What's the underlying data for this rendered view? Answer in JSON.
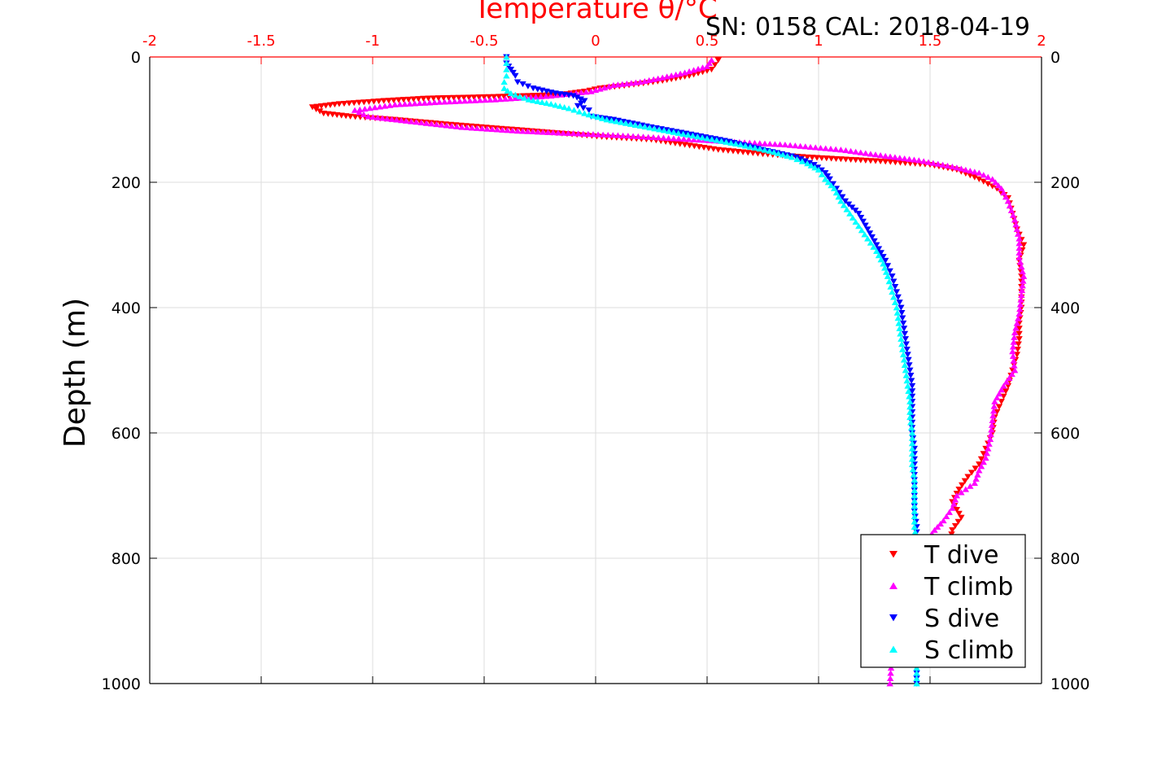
{
  "chart_data": {
    "type": "scatter",
    "title": "Temperature θ/°C",
    "subtitle": "SN: 0158  CAL: 2018-04-19",
    "xlabel": "Temperature θ/°C",
    "ylabel": "Depth (m)",
    "xlim": [
      -2,
      2
    ],
    "ylim": [
      0,
      1000
    ],
    "y_reversed": true,
    "grid": true,
    "x_ticks": [
      "-2",
      "-1.5",
      "-1",
      "-0.5",
      "0",
      "0.5",
      "1",
      "1.5",
      "2"
    ],
    "y_ticks": [
      "0",
      "200",
      "400",
      "600",
      "800",
      "1000"
    ],
    "legend_position": "bottom-right",
    "colors": {
      "axis_top": "#ff0000",
      "title": "#ff0000",
      "grid": "#dddddd"
    },
    "series": [
      {
        "name": "T dive",
        "marker": "triangle-down",
        "color": "#ff0000",
        "points": [
          [
            0.55,
            5
          ],
          [
            0.52,
            20
          ],
          [
            0.42,
            30
          ],
          [
            0.3,
            38
          ],
          [
            0.15,
            45
          ],
          [
            0.02,
            50
          ],
          [
            -0.05,
            55
          ],
          [
            -0.15,
            60
          ],
          [
            -0.3,
            62
          ],
          [
            -0.5,
            64
          ],
          [
            -0.75,
            66
          ],
          [
            -0.95,
            70
          ],
          [
            -1.15,
            75
          ],
          [
            -1.27,
            80
          ],
          [
            -1.22,
            90
          ],
          [
            -1.1,
            95
          ],
          [
            -0.9,
            100
          ],
          [
            -0.65,
            108
          ],
          [
            -0.4,
            115
          ],
          [
            -0.15,
            122
          ],
          [
            0.05,
            128
          ],
          [
            0.25,
            132
          ],
          [
            0.4,
            140
          ],
          [
            0.55,
            148
          ],
          [
            0.75,
            155
          ],
          [
            0.95,
            160
          ],
          [
            1.1,
            163
          ],
          [
            1.3,
            167
          ],
          [
            1.5,
            172
          ],
          [
            1.62,
            180
          ],
          [
            1.72,
            195
          ],
          [
            1.8,
            210
          ],
          [
            1.85,
            225
          ],
          [
            1.87,
            250
          ],
          [
            1.89,
            275
          ],
          [
            1.92,
            300
          ],
          [
            1.9,
            325
          ],
          [
            1.91,
            350
          ],
          [
            1.91,
            375
          ],
          [
            1.91,
            400
          ],
          [
            1.9,
            425
          ],
          [
            1.9,
            450
          ],
          [
            1.89,
            475
          ],
          [
            1.87,
            500
          ],
          [
            1.85,
            525
          ],
          [
            1.82,
            550
          ],
          [
            1.79,
            575
          ],
          [
            1.78,
            600
          ],
          [
            1.75,
            625
          ],
          [
            1.72,
            650
          ],
          [
            1.67,
            670
          ],
          [
            1.63,
            690
          ],
          [
            1.6,
            710
          ],
          [
            1.64,
            735
          ],
          [
            1.6,
            755
          ],
          [
            1.59,
            775
          ]
        ]
      },
      {
        "name": "T climb",
        "marker": "triangle-up",
        "color": "#ff00ff",
        "points": [
          [
            0.52,
            5
          ],
          [
            0.5,
            15
          ],
          [
            0.4,
            25
          ],
          [
            0.3,
            33
          ],
          [
            0.2,
            40
          ],
          [
            0.08,
            45
          ],
          [
            -0.02,
            55
          ],
          [
            -0.2,
            62
          ],
          [
            -0.45,
            68
          ],
          [
            -0.7,
            72
          ],
          [
            -0.9,
            76
          ],
          [
            -1.08,
            85
          ],
          [
            -1.02,
            95
          ],
          [
            -0.85,
            102
          ],
          [
            -0.6,
            112
          ],
          [
            -0.35,
            118
          ],
          [
            -0.1,
            122
          ],
          [
            0.1,
            125
          ],
          [
            0.35,
            130
          ],
          [
            0.6,
            135
          ],
          [
            0.85,
            140
          ],
          [
            1.1,
            148
          ],
          [
            1.3,
            158
          ],
          [
            1.45,
            165
          ],
          [
            1.6,
            175
          ],
          [
            1.72,
            185
          ],
          [
            1.78,
            195
          ],
          [
            1.82,
            210
          ],
          [
            1.85,
            230
          ],
          [
            1.88,
            260
          ],
          [
            1.9,
            290
          ],
          [
            1.9,
            320
          ],
          [
            1.92,
            350
          ],
          [
            1.91,
            380
          ],
          [
            1.9,
            410
          ],
          [
            1.88,
            440
          ],
          [
            1.87,
            470
          ],
          [
            1.88,
            500
          ],
          [
            1.83,
            525
          ],
          [
            1.79,
            550
          ],
          [
            1.78,
            580
          ],
          [
            1.77,
            610
          ],
          [
            1.75,
            640
          ],
          [
            1.72,
            660
          ],
          [
            1.7,
            680
          ],
          [
            1.62,
            700
          ],
          [
            1.6,
            720
          ],
          [
            1.56,
            740
          ],
          [
            1.52,
            755
          ],
          [
            1.45,
            790
          ],
          [
            1.4,
            830
          ],
          [
            1.38,
            870
          ],
          [
            1.35,
            910
          ],
          [
            1.33,
            950
          ],
          [
            1.32,
            1000
          ]
        ]
      },
      {
        "name": "S dive",
        "marker": "triangle-down",
        "color": "#0000ff",
        "points": [
          [
            -0.4,
            0
          ],
          [
            -0.4,
            10
          ],
          [
            -0.38,
            20
          ],
          [
            -0.36,
            30
          ],
          [
            -0.35,
            40
          ],
          [
            -0.28,
            50
          ],
          [
            -0.18,
            58
          ],
          [
            -0.1,
            62
          ],
          [
            -0.05,
            70
          ],
          [
            -0.08,
            78
          ],
          [
            -0.03,
            85
          ],
          [
            -0.02,
            95
          ],
          [
            0.08,
            100
          ],
          [
            0.25,
            112
          ],
          [
            0.45,
            125
          ],
          [
            0.6,
            135
          ],
          [
            0.75,
            148
          ],
          [
            0.9,
            160
          ],
          [
            0.98,
            172
          ],
          [
            1.03,
            185
          ],
          [
            1.05,
            195
          ],
          [
            1.08,
            210
          ],
          [
            1.12,
            230
          ],
          [
            1.18,
            250
          ],
          [
            1.22,
            275
          ],
          [
            1.26,
            300
          ],
          [
            1.3,
            325
          ],
          [
            1.33,
            350
          ],
          [
            1.35,
            375
          ],
          [
            1.37,
            400
          ],
          [
            1.38,
            425
          ],
          [
            1.39,
            450
          ],
          [
            1.4,
            475
          ],
          [
            1.41,
            500
          ],
          [
            1.42,
            525
          ],
          [
            1.42,
            550
          ],
          [
            1.42,
            575
          ],
          [
            1.42,
            600
          ],
          [
            1.43,
            625
          ],
          [
            1.43,
            650
          ],
          [
            1.43,
            675
          ],
          [
            1.43,
            700
          ],
          [
            1.43,
            725
          ],
          [
            1.44,
            750
          ],
          [
            1.44,
            775
          ],
          [
            1.44,
            800
          ],
          [
            1.44,
            850
          ],
          [
            1.44,
            900
          ],
          [
            1.44,
            950
          ],
          [
            1.44,
            1000
          ]
        ]
      },
      {
        "name": "S climb",
        "marker": "triangle-up",
        "color": "#00ffff",
        "points": [
          [
            -0.4,
            0
          ],
          [
            -0.4,
            10
          ],
          [
            -0.4,
            20
          ],
          [
            -0.4,
            30
          ],
          [
            -0.41,
            40
          ],
          [
            -0.41,
            50
          ],
          [
            -0.38,
            58
          ],
          [
            -0.3,
            68
          ],
          [
            -0.2,
            75
          ],
          [
            -0.12,
            82
          ],
          [
            -0.05,
            90
          ],
          [
            0.05,
            100
          ],
          [
            0.2,
            110
          ],
          [
            0.35,
            120
          ],
          [
            0.5,
            130
          ],
          [
            0.65,
            140
          ],
          [
            0.78,
            150
          ],
          [
            0.88,
            160
          ],
          [
            0.95,
            170
          ],
          [
            1.0,
            180
          ],
          [
            1.03,
            195
          ],
          [
            1.07,
            210
          ],
          [
            1.1,
            230
          ],
          [
            1.14,
            250
          ],
          [
            1.18,
            270
          ],
          [
            1.22,
            290
          ],
          [
            1.26,
            310
          ],
          [
            1.29,
            330
          ],
          [
            1.31,
            350
          ],
          [
            1.33,
            375
          ],
          [
            1.35,
            400
          ],
          [
            1.36,
            425
          ],
          [
            1.37,
            450
          ],
          [
            1.38,
            475
          ],
          [
            1.39,
            500
          ],
          [
            1.4,
            525
          ],
          [
            1.41,
            550
          ],
          [
            1.41,
            575
          ],
          [
            1.42,
            600
          ],
          [
            1.42,
            625
          ],
          [
            1.42,
            650
          ],
          [
            1.43,
            675
          ],
          [
            1.43,
            700
          ],
          [
            1.43,
            725
          ],
          [
            1.43,
            750
          ],
          [
            1.44,
            775
          ],
          [
            1.44,
            800
          ],
          [
            1.44,
            850
          ],
          [
            1.44,
            900
          ],
          [
            1.44,
            950
          ],
          [
            1.44,
            1000
          ]
        ]
      }
    ]
  }
}
